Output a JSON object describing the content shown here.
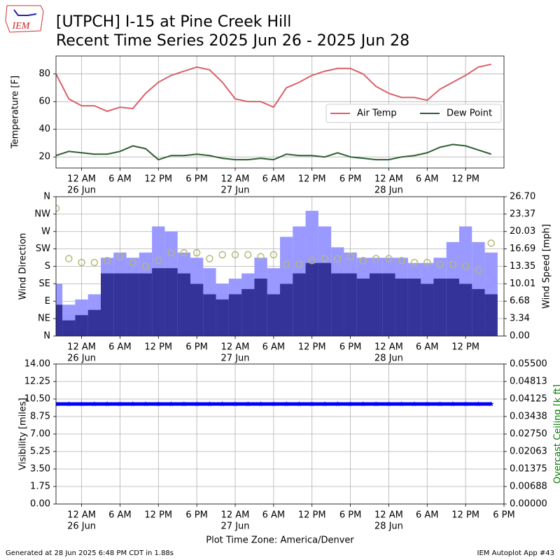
{
  "header": {
    "logo": "IEM",
    "title": "[UTPCH] I-15 at Pine Creek Hill",
    "subtitle": "Recent Time Series 2025 Jun 26 - 2025 Jun 28"
  },
  "footer": {
    "left": "Generated at 28 Jun 2025 6:48 PM CDT in 1.88s",
    "right": "IEM Autoplot App #43"
  },
  "chart_data": [
    {
      "type": "line",
      "ylabel": "Temperature [F]",
      "grid": true,
      "legend": "center right",
      "x": [
        -4,
        -2,
        0,
        2,
        4,
        6,
        8,
        10,
        12,
        14,
        16,
        18,
        20,
        22,
        24,
        26,
        28,
        30,
        32,
        34,
        36,
        38,
        40,
        42,
        44,
        46,
        48,
        50,
        52,
        54,
        56,
        58,
        60,
        62,
        64
      ],
      "xlim": [
        -4,
        66
      ],
      "xticks": [
        {
          "value": 0,
          "label": "12 AM",
          "date": "26 Jun"
        },
        {
          "value": 6,
          "label": "6 AM"
        },
        {
          "value": 12,
          "label": "12 PM"
        },
        {
          "value": 18,
          "label": "6 PM"
        },
        {
          "value": 24,
          "label": "12 AM",
          "date": "27 Jun"
        },
        {
          "value": 30,
          "label": "6 AM"
        },
        {
          "value": 36,
          "label": "12 PM"
        },
        {
          "value": 42,
          "label": "6 PM"
        },
        {
          "value": 48,
          "label": "12 AM",
          "date": "28 Jun"
        },
        {
          "value": 54,
          "label": "6 AM"
        },
        {
          "value": 60,
          "label": "12 PM"
        }
      ],
      "ylim": [
        12,
        93
      ],
      "yticks": [
        20,
        40,
        60,
        80
      ],
      "series": [
        {
          "name": "Air Temp",
          "color": "#d9606a",
          "values": [
            80,
            62,
            57,
            57,
            53,
            56,
            55,
            66,
            74,
            79,
            82,
            85,
            83,
            74,
            62,
            60,
            60,
            56,
            70,
            74,
            79,
            82,
            84,
            84,
            80,
            71,
            66,
            63,
            63,
            61,
            69,
            74,
            79,
            85,
            87
          ]
        },
        {
          "name": "Dew Point",
          "color": "#2e5e30",
          "values": [
            21,
            24,
            23,
            22,
            22,
            24,
            28,
            26,
            18,
            21,
            21,
            22,
            21,
            19,
            18,
            18,
            19,
            18,
            22,
            21,
            21,
            20,
            23,
            20,
            19,
            18,
            18,
            20,
            21,
            23,
            27,
            29,
            28,
            25,
            22
          ]
        }
      ]
    },
    {
      "type": "combo",
      "ylabel": "Wind Direction",
      "y2label": "Wind Speed [mph]",
      "grid": true,
      "x": [
        -4,
        -2,
        0,
        2,
        4,
        6,
        8,
        10,
        12,
        14,
        16,
        18,
        20,
        22,
        24,
        26,
        28,
        30,
        32,
        34,
        36,
        38,
        40,
        42,
        44,
        46,
        48,
        50,
        52,
        54,
        56,
        58,
        60,
        62,
        64
      ],
      "xlim": [
        -4,
        66
      ],
      "xticks": [
        {
          "value": 0,
          "label": "12 AM",
          "date": "26 Jun"
        },
        {
          "value": 6,
          "label": "6 AM"
        },
        {
          "value": 12,
          "label": "12 PM"
        },
        {
          "value": 18,
          "label": "6 PM"
        },
        {
          "value": 24,
          "label": "12 AM",
          "date": "27 Jun"
        },
        {
          "value": 30,
          "label": "6 AM"
        },
        {
          "value": 36,
          "label": "12 PM"
        },
        {
          "value": 42,
          "label": "6 PM"
        },
        {
          "value": 48,
          "label": "12 AM",
          "date": "28 Jun"
        },
        {
          "value": 54,
          "label": "6 AM"
        },
        {
          "value": 60,
          "label": "12 PM"
        }
      ],
      "ylim": [
        0,
        360
      ],
      "yticks": [
        {
          "value": 0,
          "label": "N"
        },
        {
          "value": 45,
          "label": "NE"
        },
        {
          "value": 90,
          "label": "E"
        },
        {
          "value": 135,
          "label": "SE"
        },
        {
          "value": 180,
          "label": "S"
        },
        {
          "value": 225,
          "label": "SW"
        },
        {
          "value": 270,
          "label": "W"
        },
        {
          "value": 315,
          "label": "NW"
        },
        {
          "value": 360,
          "label": "N"
        }
      ],
      "y2lim": [
        0,
        26.7
      ],
      "y2ticks": [
        {
          "value": 0,
          "label": "0.00"
        },
        {
          "value": 3.34,
          "label": "3.34"
        },
        {
          "value": 6.68,
          "label": "6.68"
        },
        {
          "value": 10.01,
          "label": "10.01"
        },
        {
          "value": 13.35,
          "label": "13.35"
        },
        {
          "value": 16.69,
          "label": "16.69"
        },
        {
          "value": 20.03,
          "label": "20.03"
        },
        {
          "value": 23.37,
          "label": "23.37"
        },
        {
          "value": 26.7,
          "label": "26.70"
        }
      ],
      "bars": [
        {
          "color": "#9999ff",
          "axis": "y2",
          "values": [
            10,
            6,
            7,
            8,
            15,
            16,
            15,
            16,
            21,
            20,
            16,
            15,
            13,
            10,
            11,
            12,
            15,
            13,
            19,
            21,
            24,
            21,
            17,
            16,
            15,
            15,
            15,
            15,
            14,
            14,
            15,
            18,
            21,
            18,
            16
          ]
        },
        {
          "color": "#333399",
          "axis": "y2",
          "values": [
            6,
            3,
            4,
            5,
            12,
            12,
            12,
            12,
            13,
            13,
            12,
            10,
            8,
            7,
            8,
            9,
            11,
            8,
            10,
            12,
            14,
            14,
            12,
            12,
            11,
            12,
            12,
            11,
            11,
            10,
            11,
            11,
            10,
            9,
            8
          ]
        }
      ],
      "points": {
        "color": "#b5b873",
        "values": [
          330,
          200,
          190,
          190,
          195,
          205,
          190,
          180,
          195,
          215,
          215,
          215,
          200,
          210,
          210,
          210,
          205,
          210,
          185,
          185,
          195,
          200,
          200,
          205,
          195,
          200,
          200,
          195,
          190,
          190,
          185,
          185,
          180,
          170,
          240
        ]
      }
    },
    {
      "type": "scatter",
      "ylabel": "Visibility [miles]",
      "y2label": "Overcast Ceiling [k ft]",
      "y2color": "#008000",
      "xlabel": "Plot Time Zone: America/Denver",
      "grid": true,
      "marker": "star",
      "color": "#0000ff",
      "x": [
        -4,
        -2,
        0,
        2,
        4,
        6,
        8,
        10,
        12,
        14,
        16,
        18,
        20,
        22,
        24,
        26,
        28,
        30,
        32,
        34,
        36,
        38,
        40,
        42,
        44,
        46,
        48,
        50,
        52,
        54,
        56,
        58,
        60,
        62,
        64
      ],
      "xlim": [
        -4,
        66
      ],
      "xticks": [
        {
          "value": 0,
          "label": "12 AM",
          "date": "26 Jun"
        },
        {
          "value": 6,
          "label": "6 AM"
        },
        {
          "value": 12,
          "label": "12 PM"
        },
        {
          "value": 18,
          "label": "6 PM"
        },
        {
          "value": 24,
          "label": "12 AM",
          "date": "27 Jun"
        },
        {
          "value": 30,
          "label": "6 AM"
        },
        {
          "value": 36,
          "label": "12 PM"
        },
        {
          "value": 42,
          "label": "6 PM"
        },
        {
          "value": 48,
          "label": "12 AM",
          "date": "28 Jun"
        },
        {
          "value": 54,
          "label": "6 AM"
        },
        {
          "value": 60,
          "label": "12 PM"
        },
        {
          "value": 66,
          "label": "6 PM"
        }
      ],
      "ylim": [
        0,
        14
      ],
      "yticks": [
        {
          "value": 0,
          "label": "0.00"
        },
        {
          "value": 1.75,
          "label": "1.75"
        },
        {
          "value": 3.5,
          "label": "3.50"
        },
        {
          "value": 5.25,
          "label": "5.25"
        },
        {
          "value": 7,
          "label": "7.00"
        },
        {
          "value": 8.75,
          "label": "8.75"
        },
        {
          "value": 10.5,
          "label": "10.50"
        },
        {
          "value": 12.25,
          "label": "12.25"
        },
        {
          "value": 14,
          "label": "14.00"
        }
      ],
      "y2lim": [
        0,
        0.055
      ],
      "y2ticks": [
        {
          "value": 0,
          "label": "0.00000"
        },
        {
          "value": 0.006875,
          "label": "0.00688"
        },
        {
          "value": 0.01375,
          "label": "0.01375"
        },
        {
          "value": 0.020625,
          "label": "0.02063"
        },
        {
          "value": 0.0275,
          "label": "0.02750"
        },
        {
          "value": 0.034375,
          "label": "0.03438"
        },
        {
          "value": 0.04125,
          "label": "0.04125"
        },
        {
          "value": 0.048125,
          "label": "0.04813"
        },
        {
          "value": 0.055,
          "label": "0.05500"
        }
      ],
      "values": [
        10,
        10,
        10,
        10,
        10,
        10,
        10,
        10,
        10,
        10,
        10,
        10,
        10,
        10,
        10,
        10,
        10,
        10,
        10,
        10,
        10,
        10,
        10,
        10,
        10,
        10,
        10,
        10,
        10,
        10,
        10,
        10,
        10,
        10,
        10
      ]
    }
  ]
}
